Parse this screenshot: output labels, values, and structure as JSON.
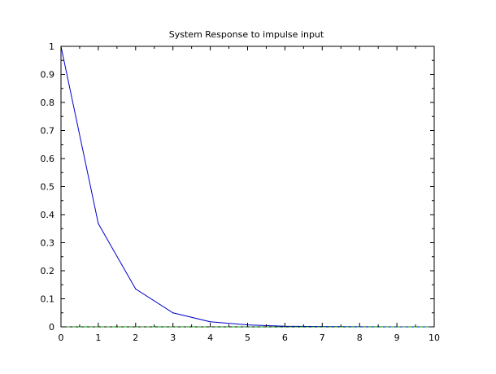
{
  "chart_data": {
    "type": "line",
    "title": "System Response to impulse input",
    "xlabel": "",
    "ylabel": "",
    "xlim": [
      0,
      10
    ],
    "ylim": [
      0,
      1
    ],
    "grid": false,
    "x_ticks": [
      "0",
      "1",
      "2",
      "3",
      "4",
      "5",
      "6",
      "7",
      "8",
      "9",
      "10"
    ],
    "y_ticks": [
      "0",
      "0.1",
      "0.2",
      "0.3",
      "0.4",
      "0.5",
      "0.6",
      "0.7",
      "0.8",
      "0.9",
      "1"
    ],
    "x": [
      0,
      1,
      2,
      3,
      4,
      5,
      6,
      7,
      8,
      9,
      10
    ],
    "series": [
      {
        "color": "#0000cc",
        "values": [
          1.0,
          0.368,
          0.135,
          0.05,
          0.018,
          0.007,
          0.002,
          0.001,
          0.0003,
          0.0001,
          5e-05
        ]
      },
      {
        "color": "#00a000",
        "style": "dashed",
        "values": [
          0,
          0,
          0,
          0,
          0,
          0,
          0,
          0,
          0,
          0,
          0
        ]
      }
    ]
  }
}
